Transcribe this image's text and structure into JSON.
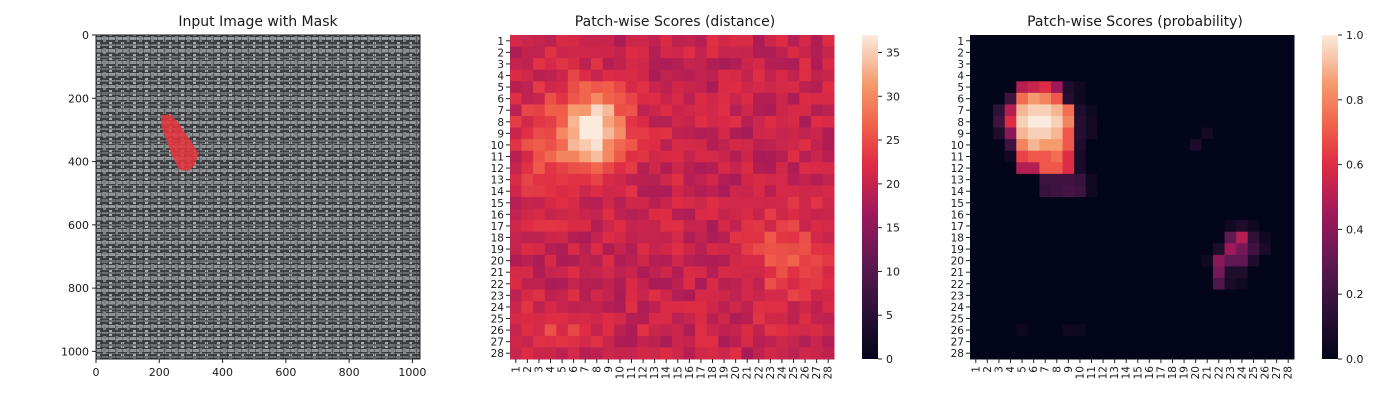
{
  "chart_data": [
    {
      "type": "image",
      "title": "Input Image with Mask",
      "x_ticks": [
        "0",
        "200",
        "400",
        "600",
        "800",
        "1000"
      ],
      "y_ticks": [
        "0",
        "200",
        "400",
        "600",
        "800",
        "1000"
      ],
      "xlim": [
        0,
        1024
      ],
      "ylim": [
        1024,
        0
      ],
      "image_description_value_note": "",
      "texture_color": "#6b6d70",
      "mask_color": "#e8343c",
      "mask_polygon": [
        [
          205,
          255
        ],
        [
          235,
          250
        ],
        [
          262,
          280
        ],
        [
          300,
          335
        ],
        [
          325,
          375
        ],
        [
          310,
          415
        ],
        [
          290,
          430
        ],
        [
          262,
          425
        ],
        [
          240,
          380
        ],
        [
          222,
          330
        ],
        [
          207,
          290
        ]
      ]
    },
    {
      "type": "heatmap",
      "title": "Patch-wise Scores (distance)",
      "labels": [
        "1",
        "2",
        "3",
        "4",
        "5",
        "6",
        "7",
        "8",
        "9",
        "10",
        "11",
        "12",
        "13",
        "14",
        "15",
        "16",
        "17",
        "18",
        "19",
        "20",
        "21",
        "22",
        "23",
        "24",
        "25",
        "26",
        "27",
        "28"
      ],
      "colorbar_ticks": [
        "0",
        "5",
        "10",
        "15",
        "20",
        "25",
        "30",
        "35"
      ],
      "vmin": 0,
      "vmax": 37,
      "colormap": "rocket",
      "base": 20,
      "blobs": [
        {
          "cx": 7.5,
          "cy": 9,
          "sx": 2.2,
          "sy": 2.6,
          "amp": 15
        },
        {
          "cx": 8,
          "cy": 8,
          "sx": 1.4,
          "sy": 1.5,
          "amp": 4
        },
        {
          "cx": 24.5,
          "cy": 19.5,
          "sx": 2.2,
          "sy": 3,
          "amp": 5
        },
        {
          "cx": 5,
          "cy": 25.5,
          "sx": 2.5,
          "sy": 1.2,
          "amp": 4
        },
        {
          "cx": 3,
          "cy": 10,
          "sx": 1.5,
          "sy": 4,
          "amp": 3
        }
      ],
      "noise": 2.5
    },
    {
      "type": "heatmap",
      "title": "Patch-wise Scores (probability)",
      "labels": [
        "1",
        "2",
        "3",
        "4",
        "5",
        "6",
        "7",
        "8",
        "9",
        "10",
        "11",
        "12",
        "13",
        "14",
        "15",
        "16",
        "17",
        "18",
        "19",
        "20",
        "21",
        "22",
        "23",
        "24",
        "25",
        "26",
        "27",
        "28"
      ],
      "colorbar_ticks": [
        "0.0",
        "0.2",
        "0.4",
        "0.6",
        "0.8",
        "1.0"
      ],
      "vmin": 0,
      "vmax": 1,
      "colormap": "rocket",
      "cells": [
        [
          5,
          5,
          0.5
        ],
        [
          6,
          5,
          0.55
        ],
        [
          7,
          5,
          0.6
        ],
        [
          8,
          5,
          0.45
        ],
        [
          9,
          5,
          0.1
        ],
        [
          10,
          5,
          0.05
        ],
        [
          4,
          6,
          0.2
        ],
        [
          5,
          6,
          0.75
        ],
        [
          6,
          6,
          0.85
        ],
        [
          7,
          6,
          0.8
        ],
        [
          8,
          6,
          0.7
        ],
        [
          9,
          6,
          0.12
        ],
        [
          10,
          6,
          0.04
        ],
        [
          3,
          7,
          0.15
        ],
        [
          4,
          7,
          0.5
        ],
        [
          5,
          7,
          0.9
        ],
        [
          6,
          7,
          0.95
        ],
        [
          7,
          7,
          0.95
        ],
        [
          8,
          7,
          0.9
        ],
        [
          9,
          7,
          0.75
        ],
        [
          10,
          7,
          0.1
        ],
        [
          11,
          7,
          0.04
        ],
        [
          3,
          8,
          0.2
        ],
        [
          4,
          8,
          0.6
        ],
        [
          5,
          8,
          0.95
        ],
        [
          6,
          8,
          1.0
        ],
        [
          7,
          8,
          1.0
        ],
        [
          8,
          8,
          0.95
        ],
        [
          9,
          8,
          0.8
        ],
        [
          10,
          8,
          0.12
        ],
        [
          11,
          8,
          0.06
        ],
        [
          3,
          9,
          0.1
        ],
        [
          4,
          9,
          0.4
        ],
        [
          5,
          9,
          0.9
        ],
        [
          6,
          9,
          0.95
        ],
        [
          7,
          9,
          0.95
        ],
        [
          8,
          9,
          0.9
        ],
        [
          9,
          9,
          0.7
        ],
        [
          10,
          9,
          0.12
        ],
        [
          11,
          9,
          0.06
        ],
        [
          4,
          10,
          0.2
        ],
        [
          5,
          10,
          0.8
        ],
        [
          6,
          10,
          0.9
        ],
        [
          7,
          10,
          0.85
        ],
        [
          8,
          10,
          0.85
        ],
        [
          9,
          10,
          0.7
        ],
        [
          10,
          10,
          0.1
        ],
        [
          4,
          11,
          0.05
        ],
        [
          5,
          11,
          0.65
        ],
        [
          6,
          11,
          0.7
        ],
        [
          7,
          11,
          0.7
        ],
        [
          8,
          11,
          0.75
        ],
        [
          9,
          11,
          0.6
        ],
        [
          10,
          11,
          0.08
        ],
        [
          5,
          12,
          0.5
        ],
        [
          6,
          12,
          0.5
        ],
        [
          7,
          12,
          0.7
        ],
        [
          8,
          12,
          0.7
        ],
        [
          9,
          12,
          0.6
        ],
        [
          10,
          12,
          0.08
        ],
        [
          7,
          13,
          0.2
        ],
        [
          8,
          13,
          0.2
        ],
        [
          9,
          13,
          0.2
        ],
        [
          10,
          13,
          0.18
        ],
        [
          11,
          13,
          0.05
        ],
        [
          7,
          14,
          0.18
        ],
        [
          8,
          14,
          0.2
        ],
        [
          9,
          14,
          0.22
        ],
        [
          10,
          14,
          0.2
        ],
        [
          11,
          14,
          0.05
        ],
        [
          20,
          10,
          0.08
        ],
        [
          21,
          9,
          0.06
        ],
        [
          23,
          17,
          0.05
        ],
        [
          24,
          17,
          0.1
        ],
        [
          25,
          17,
          0.05
        ],
        [
          23,
          18,
          0.3
        ],
        [
          24,
          18,
          0.5
        ],
        [
          25,
          18,
          0.15
        ],
        [
          26,
          18,
          0.05
        ],
        [
          22,
          19,
          0.1
        ],
        [
          23,
          19,
          0.45
        ],
        [
          24,
          19,
          0.35
        ],
        [
          25,
          19,
          0.2
        ],
        [
          26,
          19,
          0.08
        ],
        [
          21,
          20,
          0.05
        ],
        [
          22,
          20,
          0.4
        ],
        [
          23,
          20,
          0.3
        ],
        [
          24,
          20,
          0.3
        ],
        [
          25,
          20,
          0.1
        ],
        [
          22,
          21,
          0.35
        ],
        [
          23,
          21,
          0.1
        ],
        [
          24,
          21,
          0.1
        ],
        [
          22,
          22,
          0.25
        ],
        [
          23,
          22,
          0.08
        ],
        [
          24,
          22,
          0.05
        ],
        [
          5,
          26,
          0.04
        ],
        [
          9,
          26,
          0.05
        ],
        [
          10,
          26,
          0.04
        ]
      ]
    }
  ]
}
